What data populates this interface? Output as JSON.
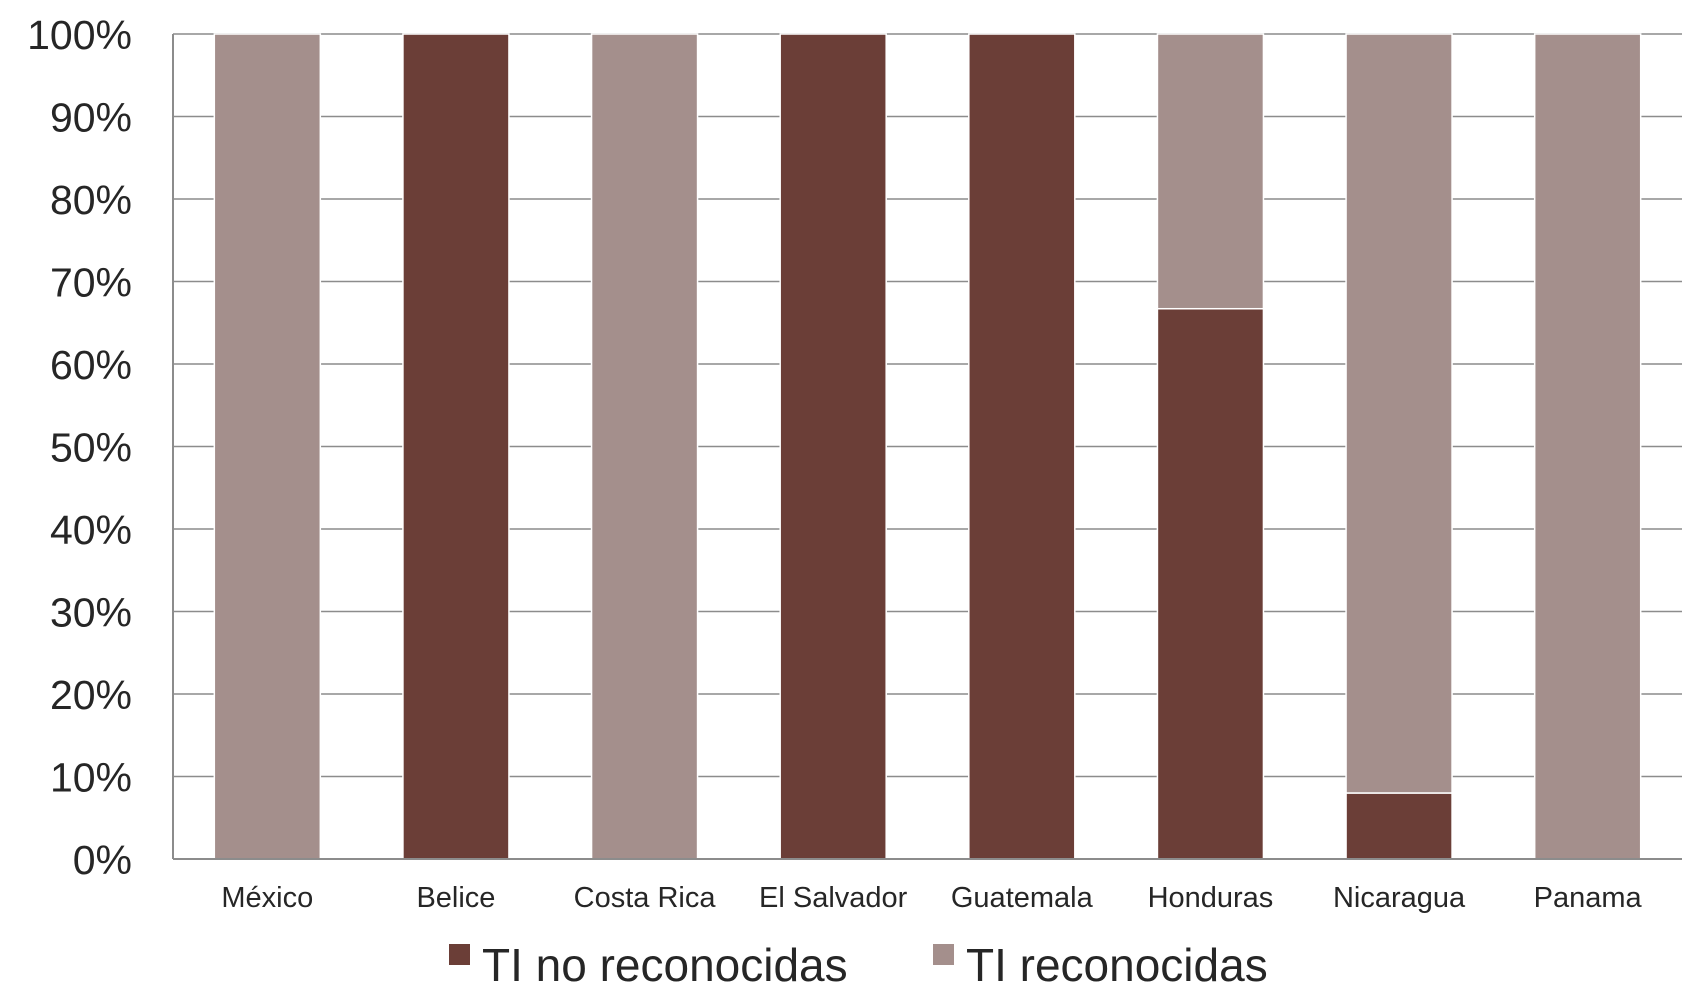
{
  "chart_data": {
    "type": "bar",
    "stacked": true,
    "percent": true,
    "categories": [
      "México",
      "Belice",
      "Costa Rica",
      "El Salvador",
      "Guatemala",
      "Honduras",
      "Nicaragua",
      "Panama"
    ],
    "series": [
      {
        "name": "TI no reconocidas",
        "color": "#6b3e37",
        "values": [
          0,
          100,
          0,
          100,
          100,
          66.7,
          8,
          0
        ]
      },
      {
        "name": "TI reconocidas",
        "color": "#a48f8c",
        "values": [
          100,
          0,
          100,
          0,
          0,
          33.3,
          92,
          100
        ]
      }
    ],
    "ylim": [
      0,
      100
    ],
    "yticks": [
      "0%",
      "10%",
      "20%",
      "30%",
      "40%",
      "50%",
      "60%",
      "70%",
      "80%",
      "90%",
      "100%"
    ],
    "grid": true,
    "legend_position": "bottom",
    "title": "",
    "xlabel": "",
    "ylabel": ""
  }
}
